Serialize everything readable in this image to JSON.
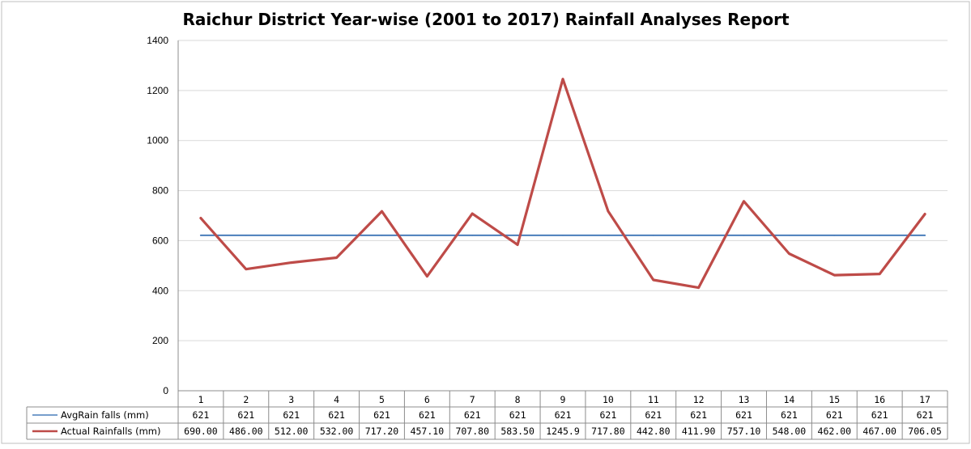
{
  "chart_data": {
    "type": "line",
    "title": "Raichur District  Year-wise (2001 to 2017)  Rainfall  Analyses Report",
    "xlabel": "",
    "ylabel": "",
    "ylim": [
      0,
      1400
    ],
    "yticks": [
      0,
      200,
      400,
      600,
      800,
      1000,
      1200,
      1400
    ],
    "grid": "horizontal",
    "legend": "data-table-bottom",
    "categories": [
      "1",
      "2",
      "3",
      "4",
      "5",
      "6",
      "7",
      "8",
      "9",
      "10",
      "11",
      "12",
      "13",
      "14",
      "15",
      "16",
      "17"
    ],
    "series": [
      {
        "name": "AvgRain falls (mm)",
        "color": "#4a7ebb",
        "values": [
          621,
          621,
          621,
          621,
          621,
          621,
          621,
          621,
          621,
          621,
          621,
          621,
          621,
          621,
          621,
          621,
          621
        ],
        "labels": [
          "621",
          "621",
          "621",
          "621",
          "621",
          "621",
          "621",
          "621",
          "621",
          "621",
          "621",
          "621",
          "621",
          "621",
          "621",
          "621",
          "621"
        ]
      },
      {
        "name": "Actual Rainfalls (mm)",
        "color": "#be4b48",
        "values": [
          690.0,
          486.0,
          512.0,
          532.0,
          717.2,
          457.1,
          707.8,
          583.5,
          1245.9,
          717.8,
          442.8,
          411.9,
          757.1,
          548.0,
          462.0,
          467.0,
          706.05
        ],
        "labels": [
          "690.00",
          "486.00",
          "512.00",
          "532.00",
          "717.20",
          "457.10",
          "707.80",
          "583.50",
          "1245.9",
          "717.80",
          "442.80",
          "411.90",
          "757.10",
          "548.00",
          "462.00",
          "467.00",
          "706.05"
        ]
      }
    ]
  }
}
